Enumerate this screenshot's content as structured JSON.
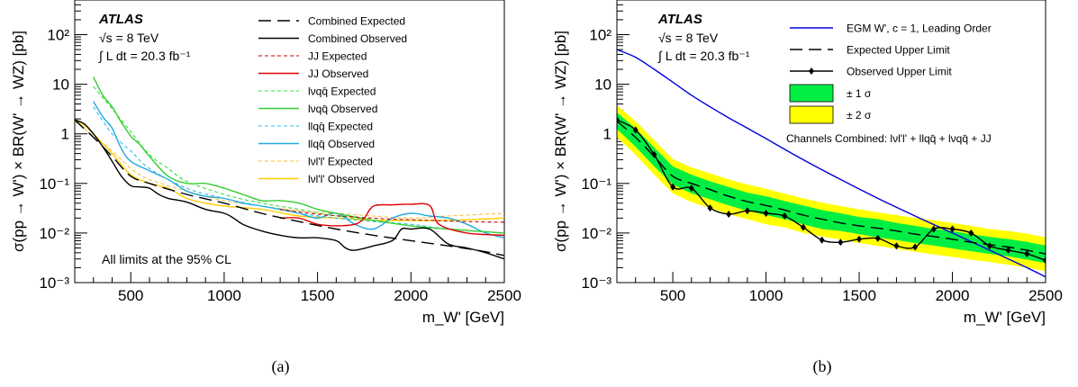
{
  "chart_data": [
    {
      "type": "line",
      "panel_label": "(a)",
      "experiment": "ATLAS",
      "energy": "√s = 8 TeV",
      "lumi": "∫ L dt = 20.3 fb⁻¹",
      "note": "All limits at the 95% CL",
      "xlabel": "m_W' [GeV]",
      "ylabel": "σ(pp → W') × BR(W' → WZ) [pb]",
      "xlim": [
        200,
        2500
      ],
      "ylim": [
        0.001,
        500
      ],
      "yscale": "log",
      "x_ticks": [
        500,
        1000,
        1500,
        2000,
        2500
      ],
      "y_ticks": [
        "10⁻³",
        "10⁻²",
        "10⁻¹",
        "1",
        "10",
        "10²"
      ],
      "legend_position": "top-right",
      "series": [
        {
          "name": "Combined Expected",
          "color": "#000000",
          "dash": "long",
          "x": [
            200,
            300,
            400,
            500,
            600,
            800,
            1000,
            1200,
            1400,
            1600,
            1800,
            2000,
            2200,
            2400,
            2500
          ],
          "y": [
            1.9,
            0.85,
            0.35,
            0.14,
            0.1,
            0.06,
            0.04,
            0.025,
            0.017,
            0.012,
            0.009,
            0.007,
            0.0055,
            0.0042,
            0.0035
          ]
        },
        {
          "name": "Combined Observed",
          "color": "#000000",
          "dash": "solid",
          "x": [
            200,
            250,
            300,
            350,
            400,
            450,
            500,
            550,
            600,
            650,
            700,
            800,
            900,
            1000,
            1050,
            1100,
            1200,
            1300,
            1400,
            1500,
            1600,
            1650,
            1700,
            1800,
            1900,
            1950,
            2000,
            2100,
            2200,
            2300,
            2400,
            2500
          ],
          "y": [
            1.9,
            1.6,
            1.0,
            0.55,
            0.28,
            0.14,
            0.09,
            0.085,
            0.08,
            0.06,
            0.05,
            0.042,
            0.03,
            0.025,
            0.02,
            0.015,
            0.011,
            0.009,
            0.008,
            0.008,
            0.007,
            0.005,
            0.0045,
            0.0055,
            0.007,
            0.012,
            0.012,
            0.012,
            0.006,
            0.005,
            0.004,
            0.003
          ]
        },
        {
          "name": "JJ Expected",
          "color": "#cc0000",
          "dash": "short",
          "x": [
            1300,
            1500,
            1700,
            1900,
            2100,
            2300,
            2500
          ],
          "y": [
            0.03,
            0.024,
            0.021,
            0.019,
            0.018,
            0.017,
            0.0165
          ]
        },
        {
          "name": "JJ Observed",
          "color": "#e00000",
          "dash": "solid",
          "x": [
            1300,
            1400,
            1500,
            1600,
            1700,
            1750,
            1800,
            1900,
            2000,
            2100,
            2150,
            2300,
            2500
          ],
          "y": [
            0.02,
            0.02,
            0.015,
            0.014,
            0.015,
            0.02,
            0.035,
            0.037,
            0.038,
            0.036,
            0.015,
            0.01,
            0.009
          ]
        },
        {
          "name": "lνqq̄ Expected",
          "color": "#33dd33",
          "dash": "short",
          "x": [
            300,
            400,
            500,
            600,
            700,
            800,
            1000,
            1200,
            1400,
            1600,
            1800,
            2000,
            2200,
            2500
          ],
          "y": [
            9,
            3.2,
            1.1,
            0.38,
            0.2,
            0.11,
            0.06,
            0.04,
            0.03,
            0.022,
            0.018,
            0.014,
            0.012,
            0.01
          ]
        },
        {
          "name": "lνqq̄ Observed",
          "color": "#33cc33",
          "dash": "solid",
          "x": [
            300,
            350,
            400,
            450,
            500,
            550,
            600,
            700,
            800,
            900,
            1000,
            1100,
            1200,
            1300,
            1400,
            1500,
            1600,
            1800,
            2000,
            2200,
            2500
          ],
          "y": [
            14,
            6,
            3.5,
            1.7,
            0.9,
            0.6,
            0.35,
            0.14,
            0.1,
            0.1,
            0.08,
            0.06,
            0.045,
            0.045,
            0.04,
            0.03,
            0.025,
            0.018,
            0.014,
            0.012,
            0.01
          ]
        },
        {
          "name": "llqq̄ Expected",
          "color": "#33bbee",
          "dash": "short",
          "x": [
            300,
            400,
            500,
            600,
            800,
            1000,
            1200,
            1400,
            1600,
            1800,
            2000,
            2200,
            2500
          ],
          "y": [
            3.5,
            1.0,
            0.45,
            0.2,
            0.08,
            0.05,
            0.035,
            0.025,
            0.02,
            0.017,
            0.015,
            0.012,
            0.01
          ]
        },
        {
          "name": "llqq̄ Observed",
          "color": "#22aadd",
          "dash": "solid",
          "x": [
            300,
            350,
            400,
            450,
            500,
            600,
            700,
            800,
            900,
            1000,
            1100,
            1200,
            1300,
            1400,
            1500,
            1600,
            1700,
            1800,
            1900,
            2000,
            2100,
            2200,
            2300,
            2400,
            2500
          ],
          "y": [
            4.5,
            2.2,
            1.3,
            0.5,
            0.28,
            0.18,
            0.12,
            0.07,
            0.055,
            0.05,
            0.04,
            0.035,
            0.03,
            0.025,
            0.02,
            0.025,
            0.015,
            0.012,
            0.02,
            0.025,
            0.022,
            0.02,
            0.015,
            0.01,
            0.008
          ]
        },
        {
          "name": "lνl'l' Expected",
          "color": "#ffbb33",
          "dash": "short",
          "x": [
            200,
            300,
            400,
            500,
            600,
            800,
            1000,
            1200,
            1400,
            1600,
            1800,
            2000,
            2200,
            2500
          ],
          "y": [
            1.8,
            0.9,
            0.45,
            0.2,
            0.12,
            0.07,
            0.045,
            0.035,
            0.028,
            0.025,
            0.022,
            0.02,
            0.022,
            0.025
          ]
        },
        {
          "name": "lνl'l' Observed",
          "color": "#ffcc00",
          "dash": "solid",
          "x": [
            200,
            250,
            300,
            400,
            500,
            600,
            700,
            800,
            900,
            1000,
            1200,
            1400,
            1600,
            1800,
            2000,
            2200,
            2500
          ],
          "y": [
            1.9,
            1.5,
            1.0,
            0.4,
            0.15,
            0.1,
            0.08,
            0.05,
            0.04,
            0.035,
            0.03,
            0.022,
            0.02,
            0.018,
            0.018,
            0.018,
            0.02
          ]
        }
      ]
    },
    {
      "type": "line",
      "panel_label": "(b)",
      "experiment": "ATLAS",
      "energy": "√s = 8 TeV",
      "lumi": "∫ L dt = 20.3 fb⁻¹",
      "note": "Channels Combined: lνl'l' + llqq̄ + lνqq̄ + JJ",
      "xlabel": "m_W' [GeV]",
      "ylabel": "σ(pp → W') × BR(W' → WZ) [pb]",
      "xlim": [
        200,
        2500
      ],
      "ylim": [
        0.001,
        500
      ],
      "yscale": "log",
      "x_ticks": [
        500,
        1000,
        1500,
        2000,
        2500
      ],
      "y_ticks": [
        "10⁻³",
        "10⁻²",
        "10⁻¹",
        "1",
        "10",
        "10²"
      ],
      "legend_position": "top-right",
      "band_x": [
        200,
        300,
        400,
        500,
        600,
        700,
        800,
        900,
        1000,
        1100,
        1200,
        1300,
        1400,
        1500,
        1600,
        1700,
        1800,
        1900,
        2000,
        2100,
        2200,
        2300,
        2400,
        2500
      ],
      "band_1sigma": {
        "name": "± 1 σ",
        "color": "#00ee44",
        "lo": [
          1.25,
          0.55,
          0.22,
          0.095,
          0.063,
          0.048,
          0.036,
          0.028,
          0.023,
          0.019,
          0.015,
          0.012,
          0.011,
          0.0095,
          0.0082,
          0.0072,
          0.0063,
          0.0056,
          0.0049,
          0.0043,
          0.0038,
          0.0034,
          0.0029,
          0.0025
        ],
        "hi": [
          2.7,
          1.28,
          0.53,
          0.22,
          0.15,
          0.11,
          0.085,
          0.065,
          0.055,
          0.044,
          0.036,
          0.029,
          0.025,
          0.021,
          0.019,
          0.016,
          0.014,
          0.012,
          0.011,
          0.0094,
          0.0084,
          0.0075,
          0.0066,
          0.0056
        ]
      },
      "band_2sigma": {
        "name": "± 2 σ",
        "color": "#ffff00",
        "lo": [
          0.85,
          0.38,
          0.15,
          0.063,
          0.042,
          0.032,
          0.024,
          0.019,
          0.015,
          0.013,
          0.01,
          0.0085,
          0.0073,
          0.0063,
          0.0055,
          0.0048,
          0.0042,
          0.0037,
          0.0033,
          0.0029,
          0.0026,
          0.0023,
          0.002,
          0.0017
        ],
        "hi": [
          3.8,
          1.8,
          0.75,
          0.31,
          0.21,
          0.16,
          0.12,
          0.095,
          0.078,
          0.062,
          0.05,
          0.041,
          0.035,
          0.03,
          0.026,
          0.023,
          0.02,
          0.018,
          0.016,
          0.014,
          0.012,
          0.011,
          0.0097,
          0.0082
        ]
      },
      "series": [
        {
          "name": "EGM W', c = 1, Leading Order",
          "color": "#0000dd",
          "dash": "solid",
          "x": [
            200,
            300,
            400,
            500,
            600,
            700,
            800,
            900,
            1000,
            1200,
            1400,
            1600,
            1800,
            2000,
            2200,
            2400,
            2500
          ],
          "y": [
            50,
            35,
            20,
            11,
            6,
            3.5,
            2.1,
            1.3,
            0.8,
            0.3,
            0.12,
            0.05,
            0.022,
            0.01,
            0.0045,
            0.002,
            0.0013
          ]
        },
        {
          "name": "Expected Upper Limit",
          "color": "#000000",
          "dash": "long",
          "x": [
            200,
            300,
            400,
            500,
            600,
            700,
            800,
            900,
            1000,
            1100,
            1200,
            1300,
            1400,
            1500,
            1600,
            1700,
            1800,
            1900,
            2000,
            2100,
            2200,
            2300,
            2400,
            2500
          ],
          "y": [
            1.8,
            0.85,
            0.35,
            0.14,
            0.1,
            0.075,
            0.055,
            0.043,
            0.036,
            0.029,
            0.023,
            0.019,
            0.016,
            0.014,
            0.0125,
            0.011,
            0.0095,
            0.0085,
            0.0075,
            0.0065,
            0.0058,
            0.0052,
            0.0045,
            0.0038
          ]
        },
        {
          "name": "Observed Upper Limit",
          "color": "#000000",
          "dash": "solid",
          "markers": true,
          "x": [
            200,
            300,
            400,
            500,
            600,
            700,
            800,
            900,
            1000,
            1100,
            1200,
            1300,
            1400,
            1500,
            1600,
            1700,
            1800,
            1900,
            2000,
            2100,
            2200,
            2300,
            2400,
            2500
          ],
          "y": [
            1.9,
            1.2,
            0.38,
            0.085,
            0.08,
            0.032,
            0.024,
            0.028,
            0.025,
            0.022,
            0.013,
            0.0072,
            0.0065,
            0.0075,
            0.0078,
            0.0055,
            0.0052,
            0.012,
            0.012,
            0.01,
            0.0055,
            0.0045,
            0.0038,
            0.0028
          ]
        }
      ]
    }
  ]
}
